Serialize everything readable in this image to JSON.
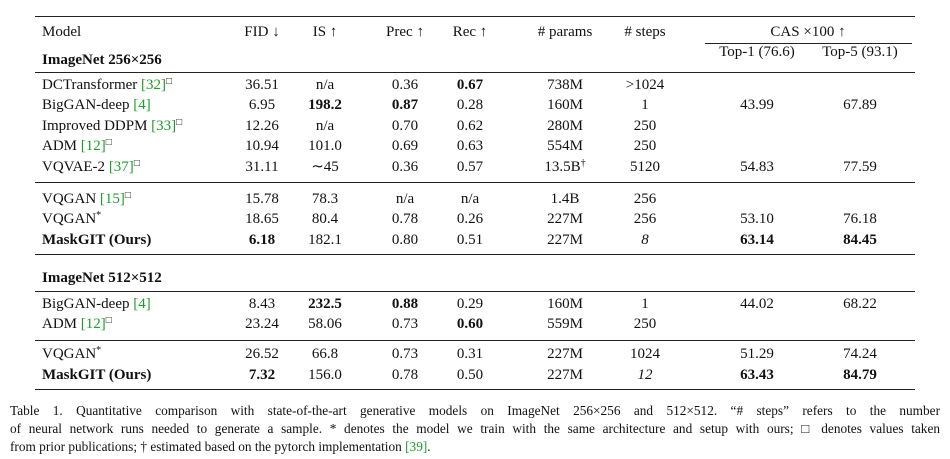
{
  "table": {
    "header": [
      "Model",
      "FID ↓",
      "IS ↑",
      "Prec ↑",
      "Rec ↑",
      "# params",
      "# steps"
    ],
    "cas_header": "CAS ×100 ↑",
    "cas_subheaders": [
      "Top-1 (76.6)",
      "Top-5 (93.1)"
    ],
    "sections": [
      {
        "title": "ImageNet 256×256",
        "groups": [
          [
            {
              "model": "DCTransformer",
              "cite": "[32]",
              "mark": "□",
              "cells": [
                "36.51",
                "n/a",
                "0.36",
                "0.67",
                "738M",
                ">1024"
              ],
              "bold": [
                3
              ]
            },
            {
              "model": "BigGAN-deep",
              "cite": "[4]",
              "cells": [
                "6.95",
                "198.2",
                "0.87",
                "0.28",
                "160M",
                "1"
              ],
              "cas": [
                "43.99",
                "67.89"
              ],
              "bold": [
                1,
                2
              ]
            },
            {
              "model": "Improved DDPM",
              "cite": "[33]",
              "mark": "□",
              "cells": [
                "12.26",
                "n/a",
                "0.70",
                "0.62",
                "280M",
                "250"
              ]
            },
            {
              "model": "ADM",
              "cite": "[12]",
              "mark": "□",
              "cells": [
                "10.94",
                "101.0",
                "0.69",
                "0.63",
                "554M",
                "250"
              ]
            },
            {
              "model": "VQVAE-2",
              "cite": "[37]",
              "mark": "□",
              "cells": [
                "31.11",
                "∼45",
                "0.36",
                "0.57",
                {
                  "text": "13.5B",
                  "sup": "†"
                },
                "5120"
              ],
              "cas": [
                "54.83",
                "77.59"
              ]
            }
          ],
          [
            {
              "model": "VQGAN",
              "cite": "[15]",
              "mark": "□",
              "cells": [
                "15.78",
                "78.3",
                "n/a",
                "n/a",
                "1.4B",
                "256"
              ]
            },
            {
              "model": "VQGAN",
              "mark": "*",
              "cells": [
                "18.65",
                "80.4",
                "0.78",
                "0.26",
                "227M",
                "256"
              ],
              "cas": [
                "53.10",
                "76.18"
              ]
            },
            {
              "model": "MaskGIT (Ours)",
              "bold_model": true,
              "cells": [
                "6.18",
                "182.1",
                "0.80",
                "0.51",
                "227M",
                "8"
              ],
              "cas": [
                "63.14",
                "84.45"
              ],
              "bold": [
                0,
                6,
                7
              ],
              "italic": [
                5
              ]
            }
          ]
        ]
      },
      {
        "title": "ImageNet 512×512",
        "groups": [
          [
            {
              "model": "BigGAN-deep",
              "cite": "[4]",
              "cells": [
                "8.43",
                "232.5",
                "0.88",
                "0.29",
                "160M",
                "1"
              ],
              "cas": [
                "44.02",
                "68.22"
              ],
              "bold": [
                1,
                2
              ]
            },
            {
              "model": "ADM",
              "cite": "[12]",
              "mark": "□",
              "cells": [
                "23.24",
                "58.06",
                "0.73",
                "0.60",
                "559M",
                "250"
              ],
              "bold": [
                3
              ]
            }
          ],
          [
            {
              "model": "VQGAN",
              "mark": "*",
              "cells": [
                "26.52",
                "66.8",
                "0.73",
                "0.31",
                "227M",
                "1024"
              ],
              "cas": [
                "51.29",
                "74.24"
              ]
            },
            {
              "model": "MaskGIT (Ours)",
              "bold_model": true,
              "cells": [
                "7.32",
                "156.0",
                "0.78",
                "0.50",
                "227M",
                "12"
              ],
              "cas": [
                "63.43",
                "84.79"
              ],
              "bold": [
                0,
                6,
                7
              ],
              "italic": [
                5
              ]
            }
          ]
        ]
      }
    ]
  },
  "caption": {
    "lines": [
      "Table 1. Quantitative comparison with state-of-the-art generative models on ImageNet 256×256 and 512×512. “# steps” refers to the number",
      "of neural network runs needed to generate a sample. * denotes the model we train with the same architecture and setup with ours; □ denotes values taken",
      "from prior publications; † estimated based on the pytorch implementation "
    ],
    "cite": "[39]",
    "end": "."
  }
}
